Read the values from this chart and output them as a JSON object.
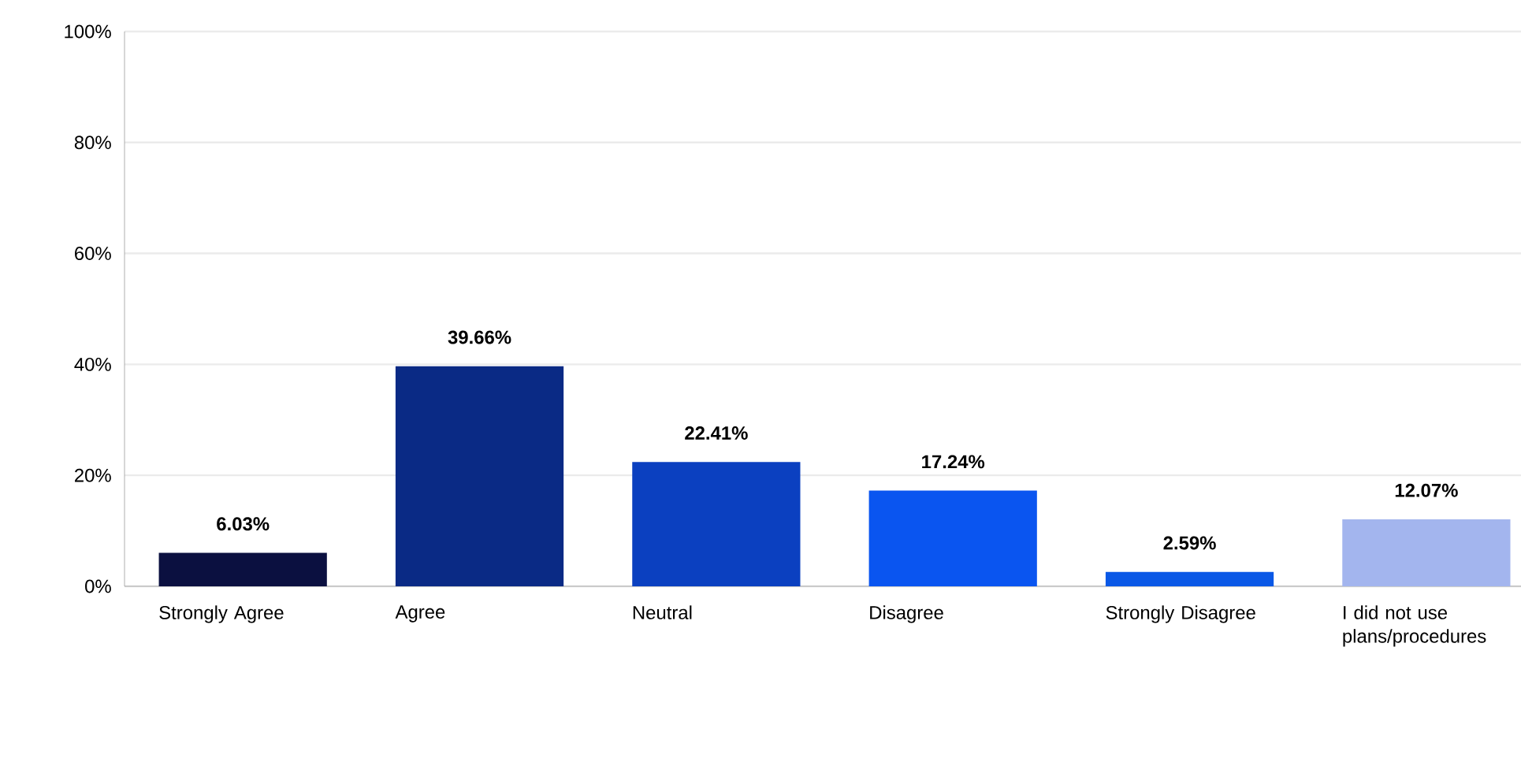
{
  "chart_data": {
    "type": "bar",
    "categories": [
      "Strongly Agree",
      "Agree",
      "Neutral",
      "Disagree",
      "Strongly Disagree",
      "I did not use plans/procedures"
    ],
    "values": [
      6.03,
      39.66,
      22.41,
      17.24,
      2.59,
      12.07
    ],
    "colors": [
      "#0b1040",
      "#0a2a85",
      "#0b40c0",
      "#0a55f0",
      "#0a58e6",
      "#a3b5ee"
    ],
    "value_labels": [
      "6.03%",
      "39.66%",
      "22.41%",
      "17.24%",
      "2.59%",
      "12.07%"
    ],
    "ylim": [
      0,
      100
    ],
    "yticks": [
      {
        "value": 0,
        "label": "0%"
      },
      {
        "value": 20,
        "label": "20%"
      },
      {
        "value": 40,
        "label": "40%"
      },
      {
        "value": 60,
        "label": "60%"
      },
      {
        "value": 80,
        "label": "80%"
      },
      {
        "value": 100,
        "label": "100%"
      }
    ],
    "grid": "y"
  }
}
